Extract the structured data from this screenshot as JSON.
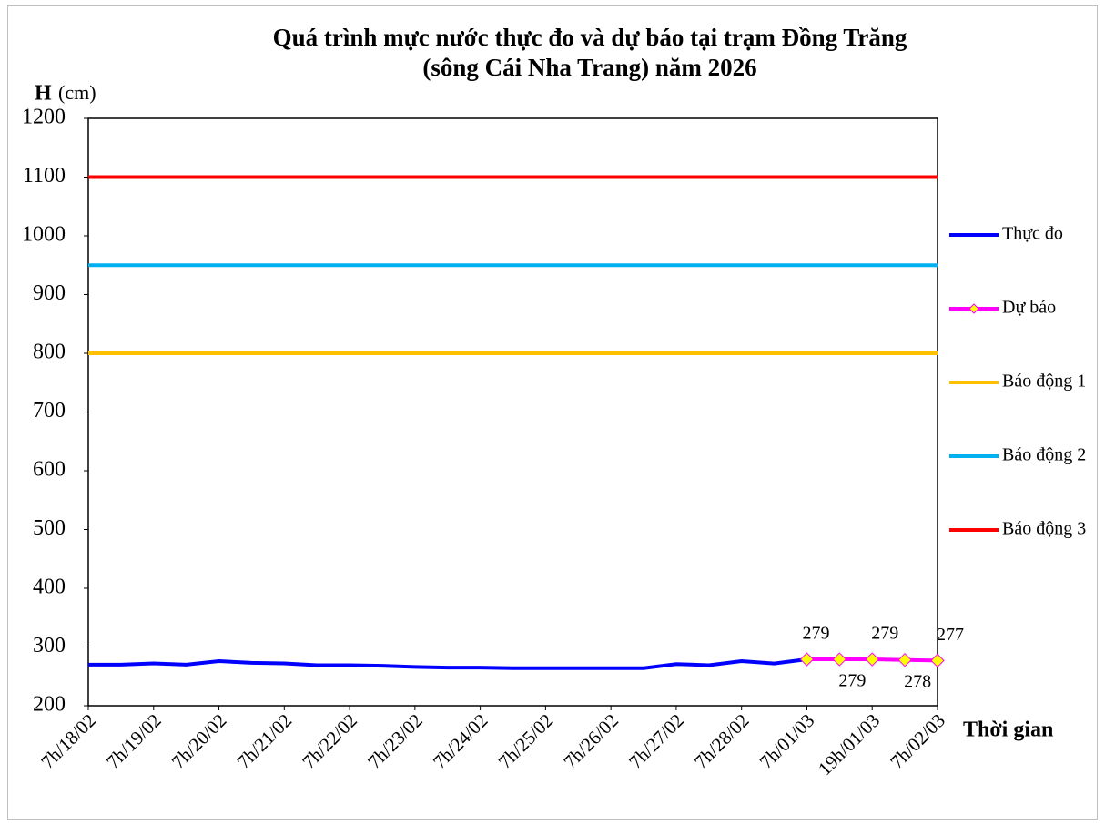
{
  "chart_data": {
    "type": "line",
    "title": [
      "Quá trình mực nước thực đo và dự báo tại trạm Đồng Trăng",
      "(sông Cái Nha Trang) năm 2026"
    ],
    "y_label": "H",
    "y_unit": "(cm)",
    "x_label": "Thời gian",
    "categories": [
      "7h/18/02",
      null,
      "7h/19/02",
      null,
      "7h/20/02",
      null,
      "7h/21/02",
      null,
      "7h/22/02",
      null,
      "7h/23/02",
      null,
      "7h/24/02",
      null,
      "7h/25/02",
      null,
      "7h/26/02",
      null,
      "7h/27/02",
      null,
      "7h/28/02",
      null,
      "7h/01/03",
      null,
      "19h/01/03",
      null,
      "7h/02/03"
    ],
    "ylim": [
      200,
      1200
    ],
    "yticks": [
      200,
      300,
      400,
      500,
      600,
      700,
      800,
      900,
      1000,
      1100,
      1200
    ],
    "series": [
      {
        "name": "Thực đo",
        "color": "#0000ff",
        "values": [
          270,
          270,
          272,
          270,
          276,
          273,
          272,
          269,
          269,
          268,
          266,
          265,
          265,
          264,
          264,
          264,
          264,
          264,
          271,
          269,
          276,
          272,
          279,
          null,
          null,
          null,
          null
        ]
      },
      {
        "name": "Dự báo",
        "color": "#ff00ff",
        "marker_color": "#ffff00",
        "data_labels": true,
        "values": [
          null,
          null,
          null,
          null,
          null,
          null,
          null,
          null,
          null,
          null,
          null,
          null,
          null,
          null,
          null,
          null,
          null,
          null,
          null,
          null,
          null,
          null,
          279,
          279,
          279,
          278,
          277
        ]
      },
      {
        "name": "Báo động 1",
        "color": "#ffc000",
        "values": [
          800,
          800,
          800,
          800,
          800,
          800,
          800,
          800,
          800,
          800,
          800,
          800,
          800,
          800,
          800,
          800,
          800,
          800,
          800,
          800,
          800,
          800,
          800,
          800,
          800,
          800,
          800
        ]
      },
      {
        "name": "Báo động 2",
        "color": "#00b0f0",
        "values": [
          950,
          950,
          950,
          950,
          950,
          950,
          950,
          950,
          950,
          950,
          950,
          950,
          950,
          950,
          950,
          950,
          950,
          950,
          950,
          950,
          950,
          950,
          950,
          950,
          950,
          950,
          950
        ]
      },
      {
        "name": "Báo động 3",
        "color": "#ff0000",
        "values": [
          1100,
          1100,
          1100,
          1100,
          1100,
          1100,
          1100,
          1100,
          1100,
          1100,
          1100,
          1100,
          1100,
          1100,
          1100,
          1100,
          1100,
          1100,
          1100,
          1100,
          1100,
          1100,
          1100,
          1100,
          1100,
          1100,
          1100
        ]
      }
    ]
  }
}
